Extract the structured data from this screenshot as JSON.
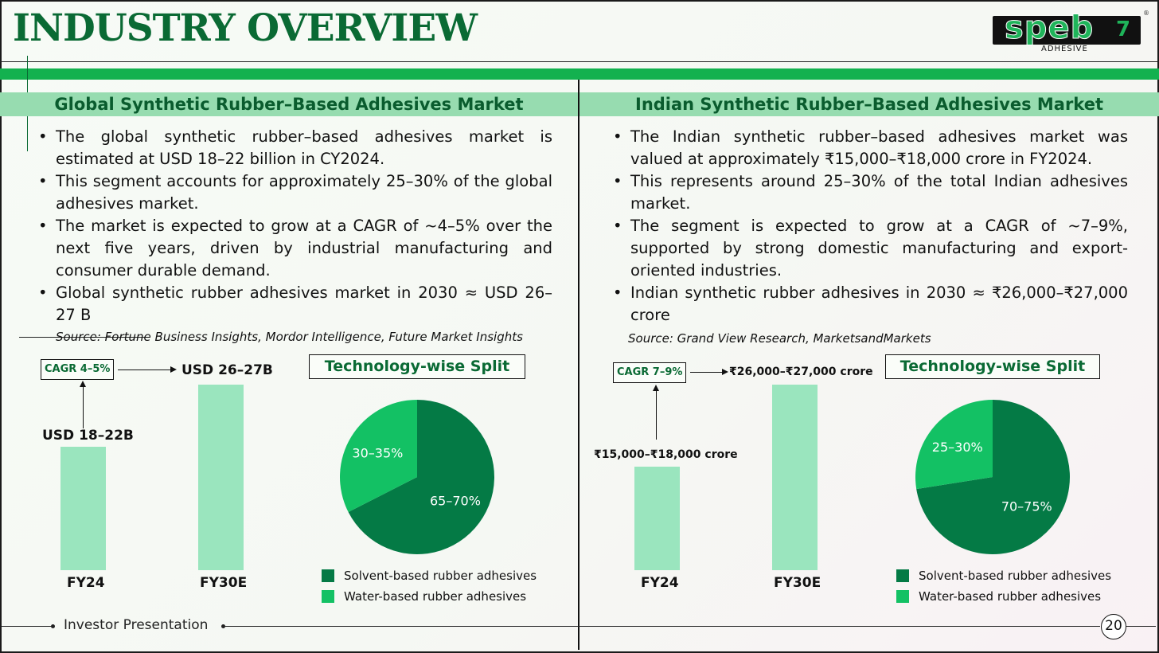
{
  "header": {
    "title": "INDUSTRY OVERVIEW",
    "logo": {
      "brand": "speb",
      "mark": "7",
      "sub": "ADHESIVE",
      "reg": "®"
    }
  },
  "global": {
    "heading": "Global Synthetic Rubber–Based Adhesives Market",
    "bullets": [
      "The global synthetic rubber–based adhesives market is estimated at USD 18–22 billion in CY2024.",
      "This segment accounts for approximately 25–30% of the global adhesives market.",
      "The market is expected to grow at a CAGR of ~4–5% over the next five years, driven by industrial manufacturing and consumer durable demand.",
      "Global synthetic rubber adhesives market in 2030 ≈ USD 26–27 B"
    ],
    "source": "Source: Fortune Business Insights, Mordor Intelligence, Future Market Insights",
    "bar_chart": {
      "cagr_label": "CAGR 4–5%",
      "fy24_value": "USD 18–22B",
      "fy30_value": "USD 26–27B",
      "fy24_cat": "FY24",
      "fy30_cat": "FY30E"
    },
    "split": {
      "title": "Technology-wise Split",
      "solvent_pct": "65–70%",
      "water_pct": "30–35%",
      "legend_solvent": "Solvent-based rubber adhesives",
      "legend_water": "Water-based rubber adhesives"
    }
  },
  "india": {
    "heading": "Indian Synthetic Rubber–Based Adhesives Market",
    "bullets": [
      "The Indian synthetic rubber–based adhesives market was valued at approximately ₹15,000–₹18,000 crore in FY2024.",
      "This represents around 25–30% of the total Indian adhesives market.",
      "The segment is expected to grow at a CAGR of ~7–9%, supported by strong domestic manufacturing and export-oriented industries.",
      "Indian synthetic rubber adhesives in 2030 ≈ ₹26,000–₹27,000 crore"
    ],
    "source": "Source: Grand View Research, MarketsandMarkets",
    "bar_chart": {
      "cagr_label": "CAGR 7–9%",
      "fy24_value": "₹15,000–₹18,000 crore",
      "fy30_value": "₹26,000–₹27,000 crore",
      "fy24_cat": "FY24",
      "fy30_cat": "FY30E"
    },
    "split": {
      "title": "Technology-wise Split",
      "solvent_pct": "70–75%",
      "water_pct": "25–30%",
      "legend_solvent": "Solvent-based rubber adhesives",
      "legend_water": "Water-based rubber adhesives"
    }
  },
  "footer": {
    "label": "Investor Presentation",
    "page": "20"
  },
  "colors": {
    "solvent": "#047a45",
    "water": "#13c164",
    "bar": "#9ae5be",
    "brand_green": "#0a6a34"
  },
  "chart_data": [
    {
      "type": "bar",
      "categories": [
        "FY24",
        "FY30E"
      ],
      "values": [
        20,
        26.5
      ],
      "labels": [
        "USD 18–22B",
        "USD 26–27B"
      ],
      "annotation": "CAGR 4–5%",
      "ylim": [
        0,
        30
      ]
    },
    {
      "type": "pie",
      "title": "Technology-wise Split",
      "categories": [
        "Solvent-based rubber adhesives",
        "Water-based rubber adhesives"
      ],
      "values": [
        67.5,
        32.5
      ],
      "labels": [
        "65–70%",
        "30–35%"
      ]
    },
    {
      "type": "bar",
      "categories": [
        "FY24",
        "FY30E"
      ],
      "values": [
        16500,
        26500
      ],
      "labels": [
        "₹15,000–₹18,000 crore",
        "₹26,000–₹27,000 crore"
      ],
      "annotation": "CAGR 7–9%",
      "ylim": [
        0,
        30000
      ]
    },
    {
      "type": "pie",
      "title": "Technology-wise Split",
      "categories": [
        "Solvent-based rubber adhesives",
        "Water-based rubber adhesives"
      ],
      "values": [
        72.5,
        27.5
      ],
      "labels": [
        "70–75%",
        "25–30%"
      ]
    }
  ]
}
